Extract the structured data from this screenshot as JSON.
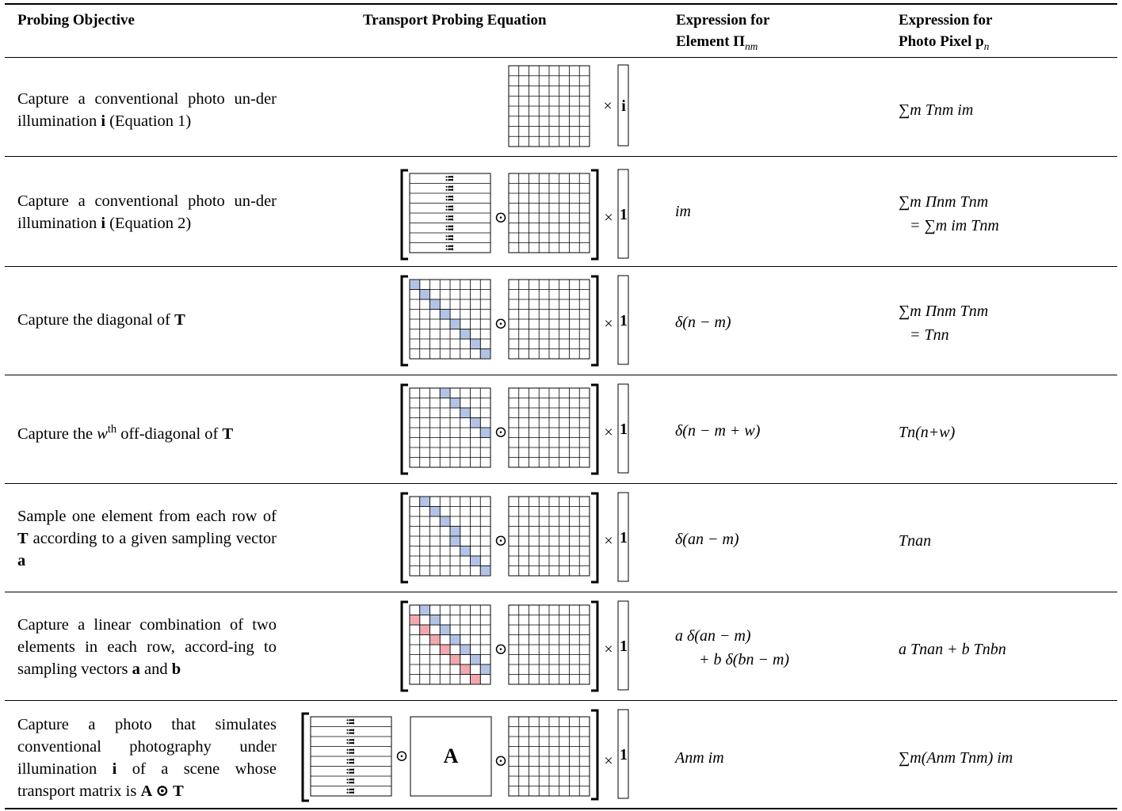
{
  "header": {
    "col1": "Probing Objective",
    "col2": "Transport Probing Equation",
    "col3_line1": "Expression for",
    "col3_line2": "Element",
    "col3_sym": "Π",
    "col3_sub": "nm",
    "col4_line1": "Expression for",
    "col4_line2": "Photo Pixel",
    "col4_sym": "p",
    "col4_sub": "n"
  },
  "rows": [
    {
      "objective": "Capture a conventional photo un-der illumination",
      "obj_bold": "i",
      "obj_tail": "(Equation 1)",
      "element": "",
      "pixel": "∑m Tnm im"
    },
    {
      "objective": "Capture a conventional photo un-der illumination",
      "obj_bold": "i",
      "obj_tail": "(Equation 2)",
      "element": "im",
      "pixel_line1": "∑m Πnm Tnm",
      "pixel_line2": "= ∑m im Tnm"
    },
    {
      "objective": "Capture the diagonal of",
      "obj_bold": "T",
      "element": "δ(n − m)",
      "pixel_line1": "∑m Πnm Tnm",
      "pixel_line2": "= Tnn"
    },
    {
      "objective": "Capture the",
      "obj_w": "w",
      "obj_sup": "th",
      "obj_tail": "off-diagonal of",
      "obj_bold": "T",
      "element": "δ(n − m + w)",
      "pixel": "Tn(n+w)"
    },
    {
      "objective_1": "Sample one element from each row of",
      "obj_bold": "T",
      "objective_2": "according to a given sampling vector",
      "obj_bold2": "a",
      "element": "δ(an − m)",
      "pixel": "Tnan"
    },
    {
      "objective_1": "Capture a linear combination of two elements in each row, accord-ing to sampling vectors",
      "obj_bold": "a",
      "obj_and": "and",
      "obj_bold2": "b",
      "element_line1": "a δ(an − m)",
      "element_line2": "+ b δ(bn − m)",
      "pixel": "a Tnan + b Tnbn"
    },
    {
      "objective_1": "Capture a photo that simulates conventional photography under illumination",
      "obj_bold": "i",
      "objective_2": "of a scene whose transport matrix is",
      "obj_bold2": "A ⊙ T",
      "element": "Anm im",
      "pixel": "∑m(Anm Tnm) im"
    }
  ],
  "equation": {
    "times": "×",
    "hadamard": "⊙",
    "vec_i": "i",
    "vec_one": "1",
    "matrix_A": "A",
    "col_label": "i"
  },
  "colors": {
    "blue_cell": "#b3c3e6",
    "red_cell": "#f1a9ad",
    "rule": "#000000"
  }
}
